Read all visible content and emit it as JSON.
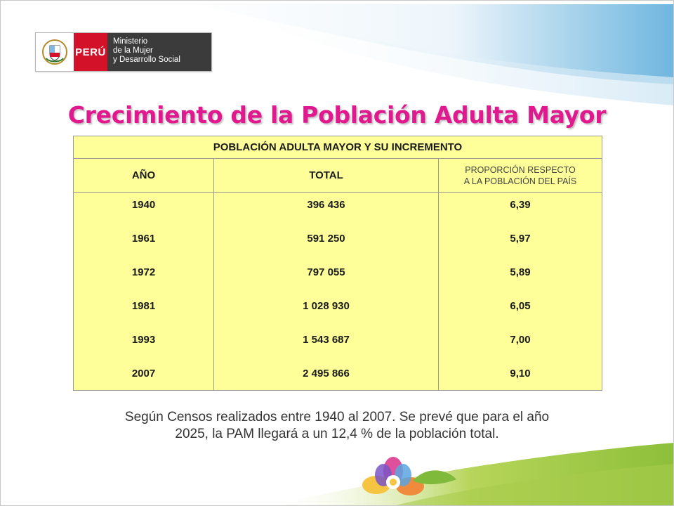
{
  "logo": {
    "country": "PERÚ",
    "ministry_lines": [
      "Ministerio",
      "de la Mujer",
      "y Desarrollo Social"
    ]
  },
  "title": "Crecimiento de la Población Adulta Mayor",
  "table": {
    "caption": "POBLACIÓN ADULTA MAYOR Y SU INCREMENTO",
    "headers": {
      "year": "AÑO",
      "total": "TOTAL",
      "proportion_line1": "PROPORCIÓN RESPECTO",
      "proportion_line2": "A LA POBLACIÓN DEL PAÍS"
    },
    "rows": [
      {
        "year": "1940",
        "total": "396 436",
        "proportion": "6,39"
      },
      {
        "year": "1961",
        "total": "591 250",
        "proportion": "5,97"
      },
      {
        "year": "1972",
        "total": "797 055",
        "proportion": "5,89"
      },
      {
        "year": "1981",
        "total": "1 028 930",
        "proportion": "6,05"
      },
      {
        "year": "1993",
        "total": "1 543 687",
        "proportion": "7,00"
      },
      {
        "year": "2007",
        "total": "2 495 866",
        "proportion": "9,10"
      }
    ]
  },
  "note_line1": "Según Censos realizados entre 1940 al 2007. Se prevé que para el año",
  "note_line2": "2025, la PAM llegará a un 12,4 % de la población total.",
  "colors": {
    "title": "#e0198f",
    "table_bg": "#ffff99",
    "peru_red": "#d3122a",
    "ministry_bg": "#3b3b3b"
  }
}
